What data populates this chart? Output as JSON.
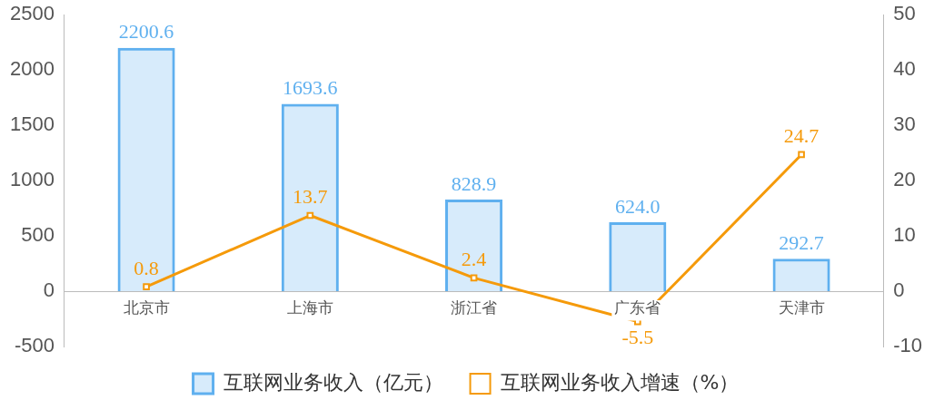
{
  "chart_data": {
    "type": "bar",
    "categories": [
      "北京市",
      "上海市",
      "浙江省",
      "广东省",
      "天津市"
    ],
    "series": [
      {
        "name": "互联网业务收入（亿元）",
        "color": "#5fb0ef",
        "values": [
          2200.6,
          1693.6,
          828.9,
          624.0,
          292.7
        ],
        "value_labels": [
          "2200.6",
          "1693.6",
          "828.9",
          "624.0",
          "292.7"
        ]
      },
      {
        "name": "互联网业务收入增速（%）",
        "type": "line",
        "axis": "y2",
        "color": "#f59a0a",
        "values": [
          0.8,
          13.7,
          2.4,
          -5.5,
          24.7
        ],
        "value_labels": [
          "0.8",
          "13.7",
          "2.4",
          "-5.5",
          "24.7"
        ]
      }
    ],
    "ylim": [
      -500,
      2500
    ],
    "yticks": [
      -500,
      0,
      500,
      1000,
      1500,
      2000,
      2500
    ],
    "y2lim": [
      -10,
      50
    ],
    "y2ticks": [
      -10,
      0,
      10,
      20,
      30,
      40,
      50
    ],
    "grid": false,
    "legend": "bottom",
    "marker": "square",
    "line_style": "solid"
  }
}
